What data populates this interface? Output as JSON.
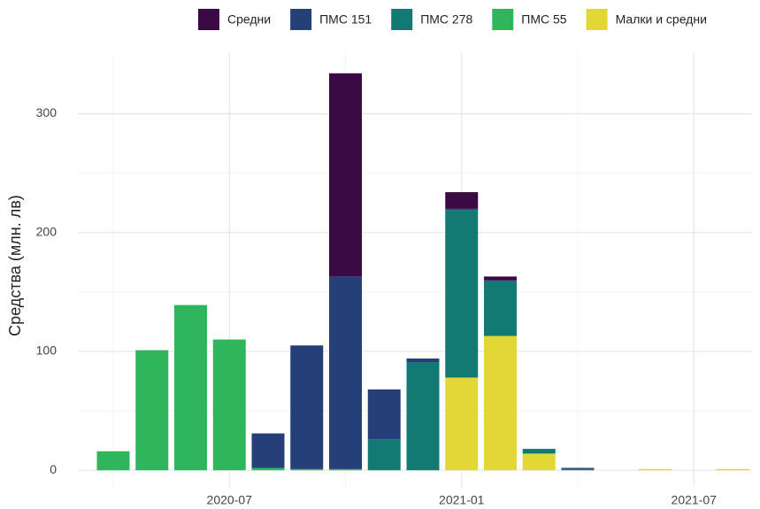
{
  "chart_data": {
    "type": "stacked_bar",
    "y_label": "Средства (млн. лв)",
    "x": [
      "2020-04",
      "2020-05",
      "2020-06",
      "2020-07",
      "2020-08",
      "2020-09",
      "2020-10",
      "2020-11",
      "2020-12",
      "2021-01",
      "2021-02",
      "2021-03",
      "2021-04",
      "2021-05",
      "2021-06",
      "2021-07",
      "2021-08"
    ],
    "series": [
      {
        "name": "Средни",
        "color": "#3b0a45",
        "values": [
          0,
          0,
          0,
          0,
          0,
          0,
          171,
          0,
          0,
          14,
          3,
          0,
          0,
          0,
          0,
          0,
          0
        ]
      },
      {
        "name": "ПМС 151",
        "color": "#253f78",
        "values": [
          0,
          0,
          0,
          0,
          29,
          104,
          162,
          42,
          3,
          1,
          1,
          0,
          1,
          0,
          0,
          0,
          0
        ]
      },
      {
        "name": "ПМС 278",
        "color": "#137a73",
        "values": [
          0,
          0,
          0,
          0,
          0,
          0,
          0,
          26,
          91,
          141,
          46,
          4,
          1,
          0,
          0,
          0,
          0
        ]
      },
      {
        "name": "ПМС 55",
        "color": "#2fb55c",
        "values": [
          16,
          101,
          139,
          110,
          2,
          1,
          1,
          0,
          0,
          0,
          0,
          0,
          0,
          0,
          0,
          0,
          0
        ]
      },
      {
        "name": "Малки и средни",
        "color": "#e3d736",
        "values": [
          0,
          0,
          0,
          0,
          0,
          0,
          0,
          0,
          0,
          78,
          113,
          14,
          0,
          0,
          1,
          0,
          1
        ]
      }
    ],
    "ylim": [
      -14,
      351
    ],
    "yticks": [
      0,
      100,
      200,
      300
    ],
    "y_minor_ticks": [
      50,
      150,
      250
    ],
    "xticks": [
      "2020-07",
      "2021-01",
      "2021-07"
    ],
    "x_minor_ticks": [
      "2020-04",
      "2020-10",
      "2021-04"
    ],
    "grid": true,
    "legend": "top"
  }
}
